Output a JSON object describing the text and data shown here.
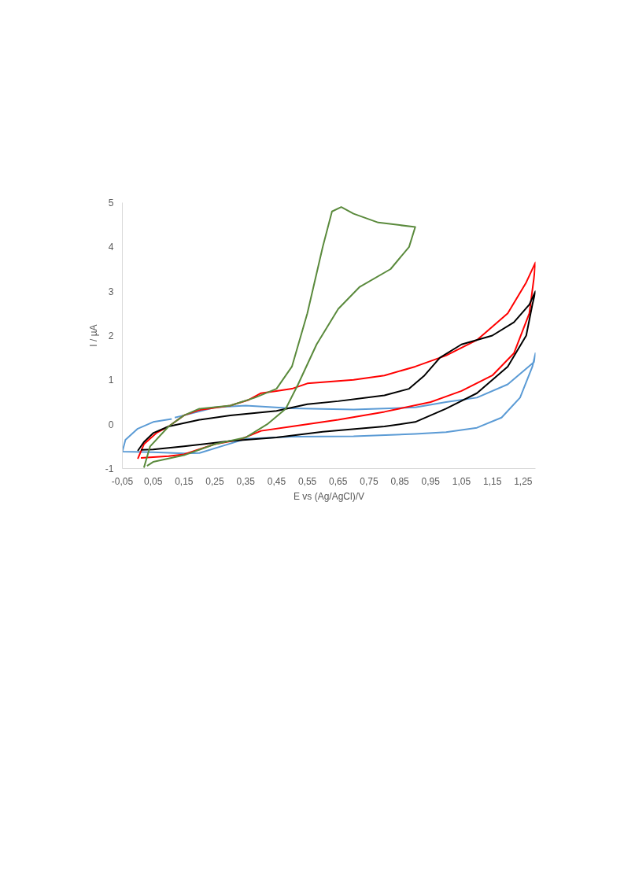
{
  "chart_data": {
    "type": "line",
    "xlabel": "E vs (Ag/AgCl)/V",
    "ylabel": "I / µA",
    "xlim": [
      -0.05,
      1.29
    ],
    "ylim": [
      -1,
      5
    ],
    "xticks": [
      {
        "value": -0.05,
        "label": "-0,05"
      },
      {
        "value": 0.05,
        "label": "0,05"
      },
      {
        "value": 0.15,
        "label": "0,15"
      },
      {
        "value": 0.25,
        "label": "0,25"
      },
      {
        "value": 0.35,
        "label": "0,35"
      },
      {
        "value": 0.45,
        "label": "0,45"
      },
      {
        "value": 0.55,
        "label": "0,55"
      },
      {
        "value": 0.65,
        "label": "0,65"
      },
      {
        "value": 0.75,
        "label": "0,75"
      },
      {
        "value": 0.85,
        "label": "0,85"
      },
      {
        "value": 0.95,
        "label": "0,95"
      },
      {
        "value": 1.05,
        "label": "1,05"
      },
      {
        "value": 1.15,
        "label": "1,15"
      },
      {
        "value": 1.25,
        "label": "1,25"
      }
    ],
    "yticks": [
      -1,
      0,
      1,
      2,
      3,
      4,
      5
    ],
    "grid": false,
    "marker": "none",
    "line_style": "solid",
    "series": [
      {
        "color": "#5b9bd5",
        "x": [
          0.11,
          0.05,
          0.0,
          -0.04,
          -0.05,
          0.05,
          0.15,
          0.2,
          0.27,
          0.35,
          0.5,
          0.7,
          0.9,
          1.0,
          1.1,
          1.18,
          1.24,
          1.28,
          1.29,
          1.285,
          1.2,
          1.1,
          1.0,
          0.9,
          0.7,
          0.5,
          0.35,
          0.25,
          0.15,
          0.12
        ],
        "values": [
          0.12,
          0.05,
          -0.1,
          -0.35,
          -0.62,
          -0.63,
          -0.66,
          -0.65,
          -0.5,
          -0.33,
          -0.28,
          -0.27,
          -0.22,
          -0.18,
          -0.08,
          0.15,
          0.6,
          1.3,
          1.6,
          1.4,
          0.9,
          0.6,
          0.5,
          0.38,
          0.33,
          0.36,
          0.42,
          0.38,
          0.2,
          0.15
        ]
      },
      {
        "color": "#ff0000",
        "x": [
          0.0,
          0.02,
          0.06,
          0.1,
          0.15,
          0.2,
          0.3,
          0.36,
          0.4,
          0.45,
          0.5,
          0.55,
          0.6,
          0.7,
          0.8,
          0.9,
          1.0,
          1.1,
          1.2,
          1.26,
          1.29,
          1.285,
          1.27,
          1.22,
          1.15,
          1.05,
          0.95,
          0.8,
          0.65,
          0.5,
          0.4,
          0.33,
          0.25,
          0.15,
          0.1,
          0.01
        ],
        "values": [
          -0.78,
          -0.45,
          -0.2,
          -0.05,
          0.2,
          0.32,
          0.42,
          0.55,
          0.7,
          0.75,
          0.8,
          0.92,
          0.95,
          1.0,
          1.1,
          1.3,
          1.55,
          1.9,
          2.5,
          3.2,
          3.65,
          3.3,
          2.5,
          1.6,
          1.1,
          0.75,
          0.5,
          0.28,
          0.1,
          -0.05,
          -0.15,
          -0.35,
          -0.45,
          -0.68,
          -0.72,
          -0.76
        ]
      },
      {
        "color": "#000000",
        "x": [
          0.0,
          0.02,
          0.05,
          0.1,
          0.2,
          0.3,
          0.45,
          0.55,
          0.65,
          0.8,
          0.88,
          0.93,
          0.98,
          1.05,
          1.15,
          1.22,
          1.27,
          1.29,
          1.28,
          1.26,
          1.2,
          1.1,
          1.0,
          0.9,
          0.8,
          0.6,
          0.45,
          0.3,
          0.15,
          0.05,
          0.01
        ],
        "values": [
          -0.6,
          -0.4,
          -0.2,
          -0.05,
          0.1,
          0.2,
          0.3,
          0.45,
          0.52,
          0.65,
          0.8,
          1.1,
          1.5,
          1.8,
          2.0,
          2.3,
          2.7,
          3.0,
          2.7,
          2.0,
          1.3,
          0.7,
          0.35,
          0.05,
          -0.05,
          -0.17,
          -0.3,
          -0.38,
          -0.5,
          -0.57,
          -0.58
        ]
      },
      {
        "color": "#5a8a3c",
        "x": [
          0.02,
          0.04,
          0.1,
          0.15,
          0.2,
          0.3,
          0.38,
          0.45,
          0.5,
          0.55,
          0.6,
          0.63,
          0.66,
          0.7,
          0.78,
          0.9,
          0.88,
          0.82,
          0.72,
          0.65,
          0.58,
          0.52,
          0.48,
          0.42,
          0.35,
          0.25,
          0.15,
          0.05,
          0.03
        ],
        "values": [
          -0.98,
          -0.5,
          -0.05,
          0.2,
          0.35,
          0.42,
          0.6,
          0.8,
          1.3,
          2.5,
          4.0,
          4.8,
          4.9,
          4.75,
          4.55,
          4.45,
          4.0,
          3.5,
          3.1,
          2.6,
          1.8,
          0.9,
          0.35,
          0.0,
          -0.3,
          -0.45,
          -0.7,
          -0.85,
          -0.94
        ]
      }
    ]
  }
}
